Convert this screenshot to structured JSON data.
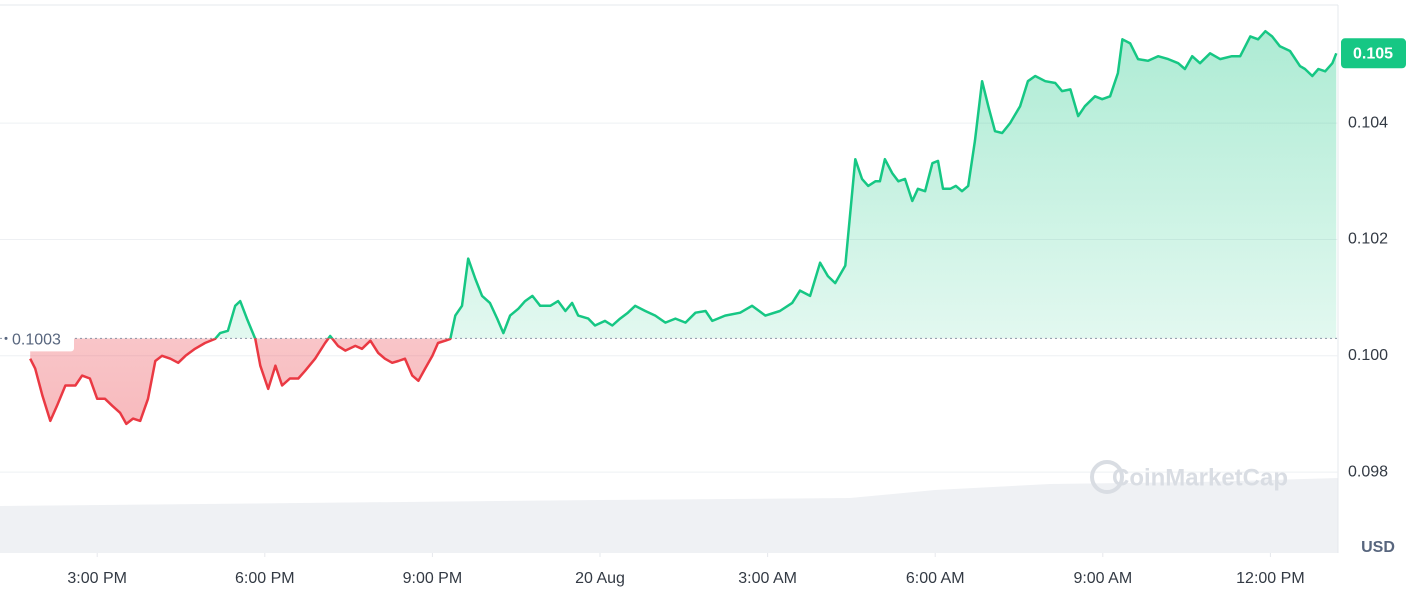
{
  "chart_data": {
    "type": "line",
    "x": [
      13.8,
      13.89,
      14.02,
      14.16,
      14.28,
      14.43,
      14.61,
      14.73,
      14.87,
      15.0,
      15.14,
      15.27,
      15.41,
      15.52,
      15.64,
      15.77,
      15.91,
      16.04,
      16.16,
      16.31,
      16.45,
      16.58,
      16.75,
      16.93,
      17.11,
      17.2,
      17.34,
      17.47,
      17.56,
      17.68,
      17.83,
      17.92,
      18.06,
      18.19,
      18.31,
      18.45,
      18.6,
      18.72,
      18.9,
      19.08,
      19.17,
      19.31,
      19.44,
      19.62,
      19.74,
      19.89,
      20.03,
      20.15,
      20.28,
      20.39,
      20.51,
      20.64,
      20.75,
      20.87,
      21.0,
      21.1,
      21.23,
      21.32,
      21.41,
      21.53,
      21.64,
      21.77,
      21.89,
      22.03,
      22.16,
      22.27,
      22.39,
      22.54,
      22.66,
      22.79,
      22.93,
      23.11,
      23.25,
      23.38,
      23.5,
      23.61,
      23.79,
      23.91,
      24.09,
      24.22,
      24.36,
      24.5,
      24.63,
      24.81,
      24.99,
      25.17,
      25.35,
      25.53,
      25.71,
      25.89,
      26.01,
      26.24,
      26.51,
      26.72,
      26.96,
      27.22,
      27.44,
      27.58,
      27.76,
      27.94,
      28.08,
      28.21,
      28.39,
      28.57,
      28.69,
      28.8,
      28.93,
      29.01,
      29.1,
      29.23,
      29.34,
      29.46,
      29.59,
      29.69,
      29.82,
      29.95,
      30.05,
      30.14,
      30.27,
      30.37,
      30.48,
      30.59,
      30.71,
      30.84,
      30.95,
      31.07,
      31.2,
      31.34,
      31.52,
      31.66,
      31.79,
      31.97,
      32.15,
      32.27,
      32.42,
      32.56,
      32.68,
      32.86,
      32.99,
      33.13,
      33.27,
      33.35,
      33.49,
      33.63,
      33.81,
      33.99,
      34.17,
      34.35,
      34.47,
      34.6,
      34.74,
      34.92,
      35.1,
      35.31,
      35.46,
      35.64,
      35.78,
      35.91,
      36.03,
      36.17,
      36.35,
      36.53,
      36.62,
      36.75,
      36.86,
      36.98,
      37.11,
      37.18
    ],
    "values": [
      0.09995,
      0.09978,
      0.09931,
      0.09888,
      0.09914,
      0.09949,
      0.09949,
      0.09966,
      0.09961,
      0.09926,
      0.09926,
      0.09914,
      0.09902,
      0.09883,
      0.09892,
      0.09888,
      0.09926,
      0.09991,
      0.1,
      0.09995,
      0.09988,
      0.1,
      0.10012,
      0.10022,
      0.10029,
      0.10039,
      0.10043,
      0.10086,
      0.10094,
      0.10064,
      0.10029,
      0.09983,
      0.09943,
      0.09983,
      0.09949,
      0.09961,
      0.09961,
      0.09974,
      0.09995,
      0.10022,
      0.10034,
      0.10017,
      0.10009,
      0.10017,
      0.10012,
      0.10026,
      0.10005,
      0.09995,
      0.09988,
      0.09991,
      0.09995,
      0.09966,
      0.09957,
      0.09978,
      0.1,
      0.10022,
      0.10026,
      0.10029,
      0.10069,
      0.10086,
      0.10167,
      0.10132,
      0.10103,
      0.10091,
      0.10064,
      0.10039,
      0.10069,
      0.10081,
      0.10094,
      0.10103,
      0.10086,
      0.10086,
      0.10094,
      0.10077,
      0.10091,
      0.10069,
      0.10064,
      0.10052,
      0.1006,
      0.10052,
      0.10064,
      0.10074,
      0.10086,
      0.10077,
      0.10069,
      0.10057,
      0.10064,
      0.10057,
      0.10074,
      0.10077,
      0.1006,
      0.10069,
      0.10074,
      0.10086,
      0.10069,
      0.10077,
      0.10091,
      0.10112,
      0.10103,
      0.1016,
      0.10137,
      0.10125,
      0.10155,
      0.10338,
      0.10304,
      0.10292,
      0.103,
      0.103,
      0.10338,
      0.10314,
      0.103,
      0.10304,
      0.10266,
      0.10287,
      0.10283,
      0.10331,
      0.10335,
      0.10287,
      0.10287,
      0.10292,
      0.10283,
      0.10292,
      0.10369,
      0.10472,
      0.10429,
      0.10386,
      0.10383,
      0.104,
      0.10429,
      0.10472,
      0.10481,
      0.10472,
      0.10469,
      0.10455,
      0.10458,
      0.10412,
      0.10429,
      0.10446,
      0.10441,
      0.10446,
      0.10486,
      0.10544,
      0.10537,
      0.1051,
      0.10507,
      0.10515,
      0.1051,
      0.10503,
      0.10493,
      0.10515,
      0.10503,
      0.1052,
      0.1051,
      0.10515,
      0.10515,
      0.10549,
      0.10544,
      0.10558,
      0.10549,
      0.10532,
      0.10524,
      0.10498,
      0.10493,
      0.10481,
      0.10493,
      0.10489,
      0.10503,
      0.1052
    ],
    "baseline": 0.1003,
    "up_color": "#16c784",
    "down_color": "#ea3943",
    "last_price_label": "0.105",
    "xlim": [
      13.26,
      37.21
    ],
    "xticks": [
      {
        "value": 15,
        "label": "3:00 PM"
      },
      {
        "value": 18,
        "label": "6:00 PM"
      },
      {
        "value": 21,
        "label": "9:00 PM"
      },
      {
        "value": 24,
        "label": "20 Aug"
      },
      {
        "value": 27,
        "label": "3:00 AM"
      },
      {
        "value": 30,
        "label": "6:00 AM"
      },
      {
        "value": 33,
        "label": "9:00 AM"
      },
      {
        "value": 36,
        "label": "12:00 PM"
      }
    ],
    "ylim": [
      0.09661,
      0.10603
    ],
    "yticks": [
      0.098,
      {
        "value": 0.1,
        "label": "0.100"
      },
      0.102,
      0.104
    ],
    "y_unit": "USD",
    "watermark": "CoinMarketCap",
    "grid": true
  }
}
